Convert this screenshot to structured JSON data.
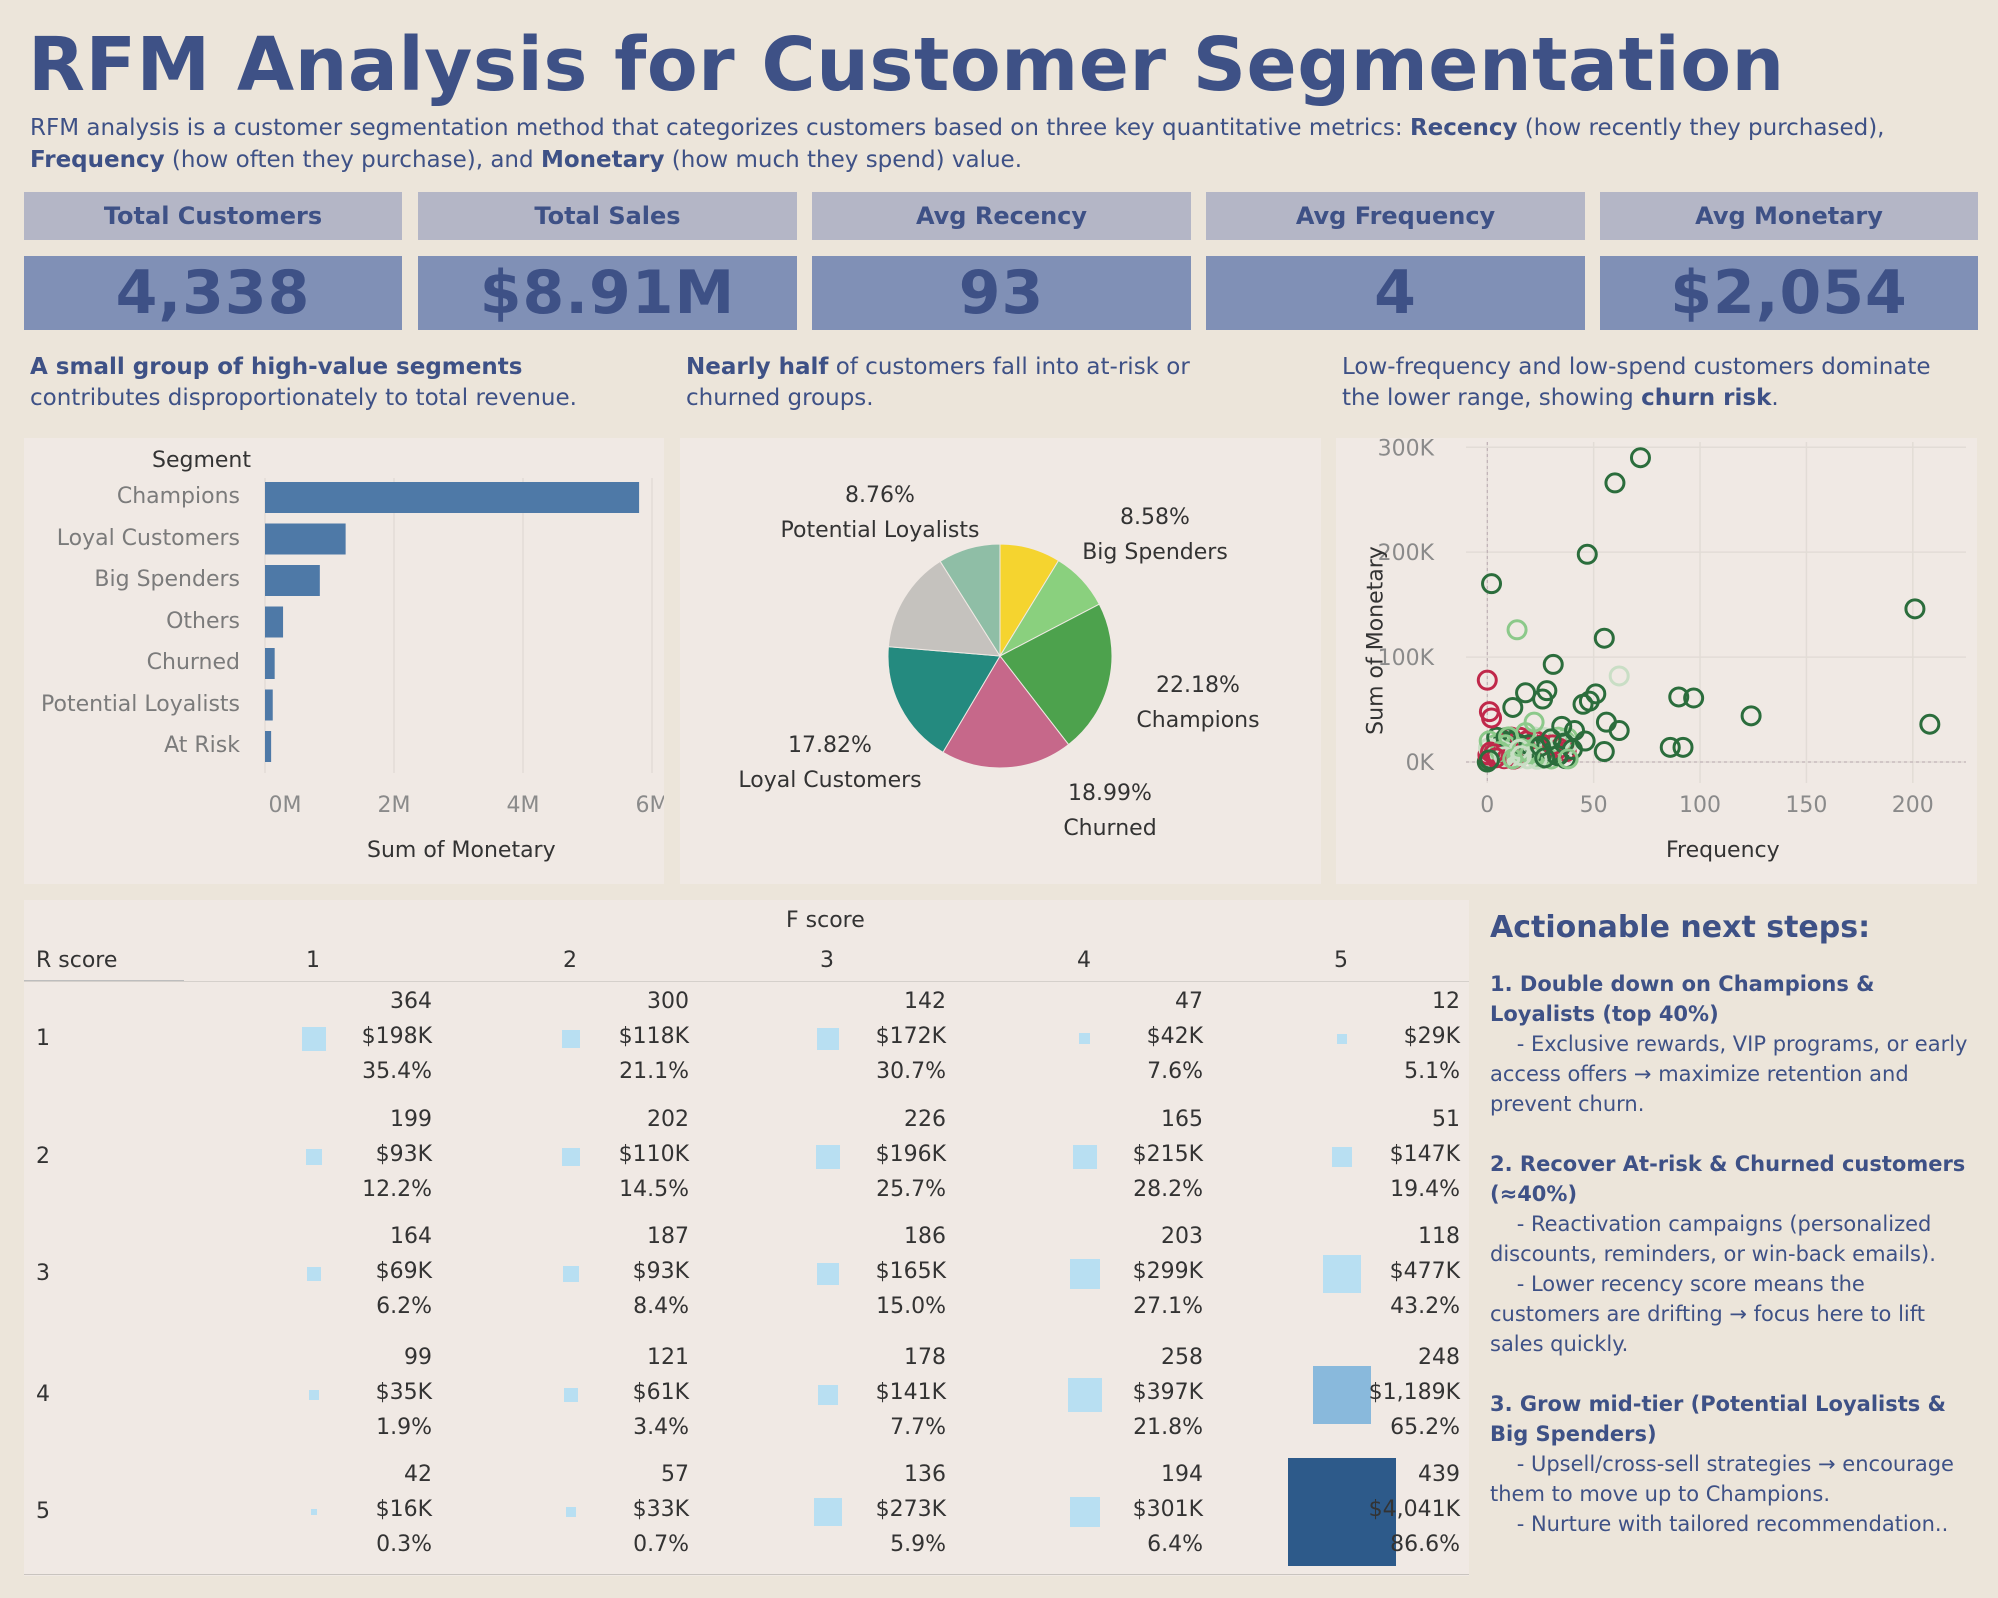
{
  "header": {
    "title": "RFM Analysis for Customer Segmentation",
    "intro": {
      "part1": "RFM analysis is a customer segmentation method that categorizes customers based on three key quantitative metrics: ",
      "recency": "Recency",
      "part2": " (how recently they purchased), ",
      "frequency": "Frequency",
      "part3": " (how often they purchase), and ",
      "monetary": "Monetary",
      "part4": " (how much they spend) value."
    }
  },
  "kpis": [
    {
      "label": "Total Customers",
      "value": "4,338"
    },
    {
      "label": "Total Sales",
      "value": "$8.91M"
    },
    {
      "label": "Avg Recency",
      "value": "93"
    },
    {
      "label": "Avg Frequency",
      "value": "4"
    },
    {
      "label": "Avg Monetary",
      "value": "$2,054"
    }
  ],
  "insights": [
    {
      "bold": "A small group of high-value segments",
      "text": " contributes disproportionately to total revenue.",
      "bold_after": "",
      "tail": ""
    },
    {
      "bold": "Nearly half",
      "text": " of customers fall into at-risk or churned groups.",
      "bold_after": "",
      "tail": ""
    },
    {
      "bold": "",
      "text": "Low-frequency and low-spend customers dominate the lower range, showing ",
      "bold_after": "churn risk",
      "tail": "."
    }
  ],
  "colors": {
    "bar": "#4e79a7",
    "pie": [
      "#f5d42f",
      "#8ad07e",
      "#4da24d",
      "#c6688a",
      "#248a7f",
      "#c5c2be",
      "#8fbea6"
    ],
    "heat_light": "#b8dff2",
    "heat_mid": "#89b9dc",
    "heat_dark": "#2d5a8a",
    "scatter_dark": "#2b6d3c",
    "scatter_light": "#8cc98a",
    "scatter_pale": "#c9dec5",
    "scatter_red": "#c0284a"
  },
  "chart_data": [
    {
      "type": "bar",
      "orientation": "horizontal",
      "categories_header": "Segment",
      "categories": [
        "Champions",
        "Loyal Customers",
        "Big Spenders",
        "Others",
        "Churned",
        "Potential Loyalists",
        "At Risk"
      ],
      "values": [
        5800000,
        1250000,
        850000,
        280000,
        150000,
        120000,
        95000
      ],
      "xlabel": "Sum of Monetary",
      "xticks": [
        "0M",
        "2M",
        "4M",
        "6M"
      ],
      "xlim": [
        0,
        6000000
      ]
    },
    {
      "type": "pie",
      "slices": [
        {
          "name": "Big Spenders",
          "pct": 8.58,
          "label_pct": "8.58%"
        },
        {
          "name": "Champions",
          "pct": 22.18,
          "label_pct": "22.18%"
        },
        {
          "name": "Churned",
          "pct": 18.99,
          "label_pct": "18.99%"
        },
        {
          "name": "Loyal Customers",
          "pct": 17.82,
          "label_pct": "17.82%"
        },
        {
          "name": "Potential Loyalists",
          "pct": 8.76,
          "label_pct": "8.76%"
        },
        {
          "name": "Others",
          "pct": 14.7,
          "label_pct": ""
        },
        {
          "name": "At Risk",
          "pct": 8.97,
          "label_pct": ""
        }
      ]
    },
    {
      "type": "scatter",
      "xlabel": "Frequency",
      "ylabel": "Sum of Monetary",
      "xlim": [
        -10,
        225
      ],
      "ylim": [
        -20000,
        305000
      ],
      "xticks": [
        "0",
        "50",
        "100",
        "150",
        "200"
      ],
      "xtick_values": [
        0,
        50,
        100,
        150,
        200
      ],
      "yticks": [
        "0K",
        "100K",
        "200K",
        "300K"
      ],
      "ytick_values": [
        0,
        100000,
        200000,
        300000
      ],
      "points": [
        {
          "x": 72,
          "y": 290000,
          "g": "dark"
        },
        {
          "x": 60,
          "y": 266000,
          "g": "dark"
        },
        {
          "x": 47,
          "y": 198000,
          "g": "dark"
        },
        {
          "x": 2,
          "y": 170000,
          "g": "dark"
        },
        {
          "x": 201,
          "y": 146000,
          "g": "dark"
        },
        {
          "x": 14,
          "y": 126000,
          "g": "light"
        },
        {
          "x": 55,
          "y": 118000,
          "g": "dark"
        },
        {
          "x": 31,
          "y": 93000,
          "g": "dark"
        },
        {
          "x": 62,
          "y": 82000,
          "g": "pale"
        },
        {
          "x": 0,
          "y": 78000,
          "g": "red"
        },
        {
          "x": 18,
          "y": 66000,
          "g": "dark"
        },
        {
          "x": 28,
          "y": 68000,
          "g": "dark"
        },
        {
          "x": 51,
          "y": 65000,
          "g": "dark"
        },
        {
          "x": 48,
          "y": 58000,
          "g": "dark"
        },
        {
          "x": 45,
          "y": 55000,
          "g": "dark"
        },
        {
          "x": 26,
          "y": 60000,
          "g": "dark"
        },
        {
          "x": 90,
          "y": 62000,
          "g": "dark"
        },
        {
          "x": 97,
          "y": 61000,
          "g": "dark"
        },
        {
          "x": 12,
          "y": 52000,
          "g": "dark"
        },
        {
          "x": 1,
          "y": 48000,
          "g": "red"
        },
        {
          "x": 2,
          "y": 42000,
          "g": "red"
        },
        {
          "x": 124,
          "y": 44000,
          "g": "dark"
        },
        {
          "x": 208,
          "y": 36000,
          "g": "dark"
        },
        {
          "x": 56,
          "y": 38000,
          "g": "dark"
        },
        {
          "x": 62,
          "y": 30000,
          "g": "dark"
        },
        {
          "x": 22,
          "y": 38000,
          "g": "light"
        },
        {
          "x": 35,
          "y": 34000,
          "g": "dark"
        },
        {
          "x": 41,
          "y": 30000,
          "g": "dark"
        },
        {
          "x": 18,
          "y": 28000,
          "g": "light"
        },
        {
          "x": 10,
          "y": 24000,
          "g": "light"
        },
        {
          "x": 30,
          "y": 22000,
          "g": "dark"
        },
        {
          "x": 36,
          "y": 18000,
          "g": "dark"
        },
        {
          "x": 86,
          "y": 14000,
          "g": "dark"
        },
        {
          "x": 92,
          "y": 14000,
          "g": "dark"
        },
        {
          "x": 55,
          "y": 10000,
          "g": "dark"
        },
        {
          "x": 25,
          "y": 15000,
          "g": "dark"
        },
        {
          "x": 40,
          "y": 12000,
          "g": "dark"
        },
        {
          "x": 15,
          "y": 12000,
          "g": "pale"
        },
        {
          "x": 6,
          "y": 10000,
          "g": "light"
        },
        {
          "x": 3,
          "y": 8000,
          "g": "red"
        },
        {
          "x": 20,
          "y": 8000,
          "g": "light"
        },
        {
          "x": 33,
          "y": 6000,
          "g": "dark"
        },
        {
          "x": 8,
          "y": 5000,
          "g": "pale"
        },
        {
          "x": 4,
          "y": 4000,
          "g": "red"
        },
        {
          "x": 12,
          "y": 3000,
          "g": "light"
        },
        {
          "x": 1,
          "y": 2000,
          "g": "dark"
        },
        {
          "x": 27,
          "y": 4000,
          "g": "dark"
        },
        {
          "x": 38,
          "y": 3000,
          "g": "light"
        },
        {
          "x": 16,
          "y": 6000,
          "g": "pale"
        },
        {
          "x": 46,
          "y": 20000,
          "g": "dark"
        }
      ]
    },
    {
      "type": "heatmap",
      "col_header": "F score",
      "row_header": "R score",
      "cols": [
        "1",
        "2",
        "3",
        "4",
        "5"
      ],
      "rows": [
        "1",
        "2",
        "3",
        "4",
        "5"
      ],
      "cells": [
        [
          {
            "count": "364",
            "sales": "$198K",
            "pct": "35.4%",
            "size": 0.198,
            "color": "light"
          },
          {
            "count": "300",
            "sales": "$118K",
            "pct": "21.1%",
            "size": 0.118,
            "color": "light"
          },
          {
            "count": "142",
            "sales": "$172K",
            "pct": "30.7%",
            "size": 0.172,
            "color": "light"
          },
          {
            "count": "47",
            "sales": "$42K",
            "pct": "7.6%",
            "size": 0.042,
            "color": "light"
          },
          {
            "count": "12",
            "sales": "$29K",
            "pct": "5.1%",
            "size": 0.029,
            "color": "light"
          }
        ],
        [
          {
            "count": "199",
            "sales": "$93K",
            "pct": "12.2%",
            "size": 0.093,
            "color": "light"
          },
          {
            "count": "202",
            "sales": "$110K",
            "pct": "14.5%",
            "size": 0.11,
            "color": "light"
          },
          {
            "count": "226",
            "sales": "$196K",
            "pct": "25.7%",
            "size": 0.196,
            "color": "light"
          },
          {
            "count": "165",
            "sales": "$215K",
            "pct": "28.2%",
            "size": 0.215,
            "color": "light"
          },
          {
            "count": "51",
            "sales": "$147K",
            "pct": "19.4%",
            "size": 0.147,
            "color": "light"
          }
        ],
        [
          {
            "count": "164",
            "sales": "$69K",
            "pct": "6.2%",
            "size": 0.069,
            "color": "light"
          },
          {
            "count": "187",
            "sales": "$93K",
            "pct": "8.4%",
            "size": 0.093,
            "color": "light"
          },
          {
            "count": "186",
            "sales": "$165K",
            "pct": "15.0%",
            "size": 0.165,
            "color": "light"
          },
          {
            "count": "203",
            "sales": "$299K",
            "pct": "27.1%",
            "size": 0.299,
            "color": "light"
          },
          {
            "count": "118",
            "sales": "$477K",
            "pct": "43.2%",
            "size": 0.477,
            "color": "light"
          }
        ],
        [
          {
            "count": "99",
            "sales": "$35K",
            "pct": "1.9%",
            "size": 0.035,
            "color": "light"
          },
          {
            "count": "121",
            "sales": "$61K",
            "pct": "3.4%",
            "size": 0.061,
            "color": "light"
          },
          {
            "count": "178",
            "sales": "$141K",
            "pct": "7.7%",
            "size": 0.141,
            "color": "light"
          },
          {
            "count": "258",
            "sales": "$397K",
            "pct": "21.8%",
            "size": 0.397,
            "color": "light"
          },
          {
            "count": "248",
            "sales": "$1,189K",
            "pct": "65.2%",
            "size": 1.189,
            "color": "mid"
          }
        ],
        [
          {
            "count": "42",
            "sales": "$16K",
            "pct": "0.3%",
            "size": 0.016,
            "color": "light"
          },
          {
            "count": "57",
            "sales": "$33K",
            "pct": "0.7%",
            "size": 0.033,
            "color": "light"
          },
          {
            "count": "136",
            "sales": "$273K",
            "pct": "5.9%",
            "size": 0.273,
            "color": "light"
          },
          {
            "count": "194",
            "sales": "$301K",
            "pct": "6.4%",
            "size": 0.301,
            "color": "light"
          },
          {
            "count": "439",
            "sales": "$4,041K",
            "pct": "86.6%",
            "size": 4.041,
            "color": "dark"
          }
        ]
      ]
    }
  ],
  "next_steps": {
    "title": "Actionable next steps:",
    "items": [
      {
        "head": "1. Double down on Champions & Loyalists (top 40%)",
        "lines": [
          "    - Exclusive rewards, VIP programs, or early access offers → maximize retention and prevent churn."
        ]
      },
      {
        "head": "2. Recover At-risk & Churned customers (≈40%)",
        "lines": [
          "    - Reactivation campaigns (personalized discounts, reminders, or win-back emails).",
          "    - Lower recency score means the customers are drifting → focus here to lift sales quickly."
        ]
      },
      {
        "head": "3. Grow mid-tier (Potential Loyalists & Big Spenders)",
        "lines": [
          "    - Upsell/cross-sell strategies → encourage them to move up to Champions.",
          "    - Nurture with tailored recommendation.."
        ]
      }
    ]
  }
}
